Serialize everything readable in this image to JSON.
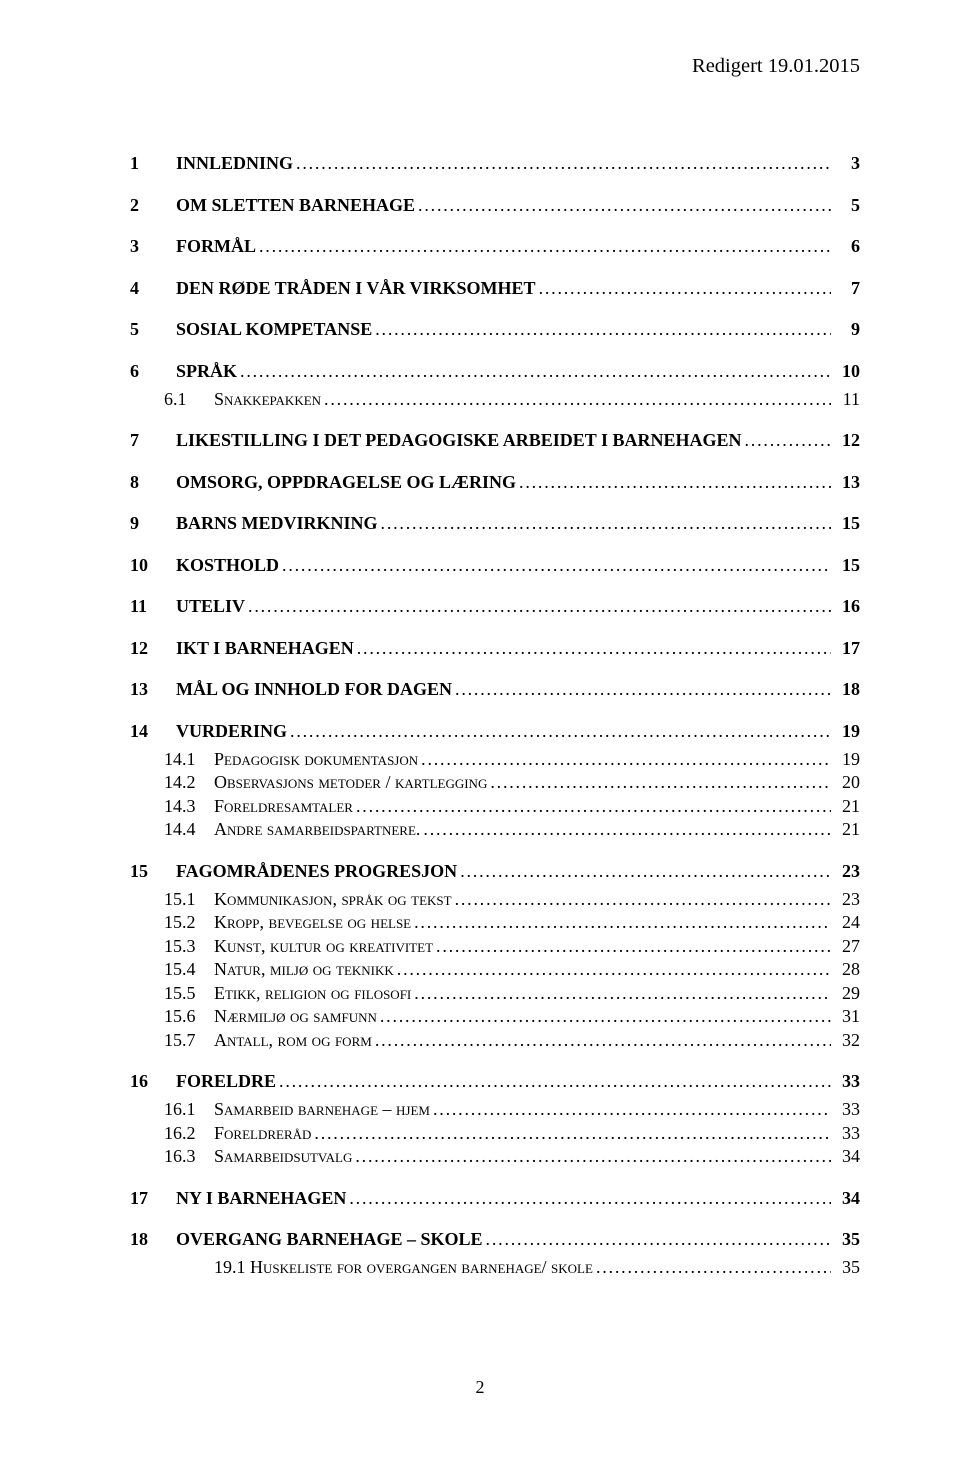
{
  "header_date": "Redigert 19.01.2015",
  "page_number": "2",
  "toc": [
    {
      "level": 1,
      "num": "1",
      "title": "INNLEDNING",
      "page": "3"
    },
    {
      "level": 1,
      "num": "2",
      "title": "OM SLETTEN BARNEHAGE",
      "page": "5"
    },
    {
      "level": 1,
      "num": "3",
      "title": "FORMÅL",
      "page": "6"
    },
    {
      "level": 1,
      "num": "4",
      "title": "DEN RØDE TRÅDEN I VÅR VIRKSOMHET",
      "page": "7"
    },
    {
      "level": 1,
      "num": "5",
      "title": "SOSIAL KOMPETANSE",
      "page": "9"
    },
    {
      "level": 1,
      "num": "6",
      "title": "SPRÅK",
      "page": "10"
    },
    {
      "level": 2,
      "num": "6.1",
      "title": "Snakkepakken",
      "page": "11",
      "smallcaps": true
    },
    {
      "level": 1,
      "num": "7",
      "title": "LIKESTILLING I DET PEDAGOGISKE ARBEIDET I BARNEHAGEN",
      "page": "12"
    },
    {
      "level": 1,
      "num": "8",
      "title": "OMSORG, OPPDRAGELSE OG LÆRING",
      "page": "13"
    },
    {
      "level": 1,
      "num": "9",
      "title": "BARNS MEDVIRKNING",
      "page": "15"
    },
    {
      "level": 1,
      "num": "10",
      "title": "KOSTHOLD",
      "page": "15"
    },
    {
      "level": 1,
      "num": "11",
      "title": "UTELIV",
      "page": "16"
    },
    {
      "level": 1,
      "num": "12",
      "title": "IKT I BARNEHAGEN",
      "page": "17"
    },
    {
      "level": 1,
      "num": "13",
      "title": "MÅL OG INNHOLD FOR DAGEN",
      "page": "18"
    },
    {
      "level": 1,
      "num": "14",
      "title": "VURDERING",
      "page": "19"
    },
    {
      "level": 2,
      "num": "14.1",
      "title": "Pedagogisk dokumentasjon",
      "page": "19",
      "smallcaps": true
    },
    {
      "level": 2,
      "num": "14.2",
      "title": "Observasjons metoder / kartlegging",
      "page": "20",
      "smallcaps": true
    },
    {
      "level": 2,
      "num": "14.3",
      "title": "Foreldresamtaler",
      "page": "21",
      "smallcaps": true
    },
    {
      "level": 2,
      "num": "14.4",
      "title": "Andre samarbeidspartnere.",
      "page": "21",
      "smallcaps": true
    },
    {
      "level": 1,
      "num": "15",
      "title": "FAGOMRÅDENES PROGRESJON",
      "page": "23"
    },
    {
      "level": 2,
      "num": "15.1",
      "title": "Kommunikasjon, språk og tekst",
      "page": "23",
      "smallcaps": true
    },
    {
      "level": 2,
      "num": "15.2",
      "title": "Kropp, bevegelse og helse",
      "page": "24",
      "smallcaps": true
    },
    {
      "level": 2,
      "num": "15.3",
      "title": "Kunst, kultur og kreativitet",
      "page": "27",
      "smallcaps": true
    },
    {
      "level": 2,
      "num": "15.4",
      "title": "Natur, miljø og teknikk",
      "page": "28",
      "smallcaps": true
    },
    {
      "level": 2,
      "num": "15.5",
      "title": "Etikk, religion og filosofi",
      "page": "29",
      "smallcaps": true
    },
    {
      "level": 2,
      "num": "15.6",
      "title": "Nærmiljø og samfunn",
      "page": "31",
      "smallcaps": true
    },
    {
      "level": 2,
      "num": "15.7",
      "title": "Antall, rom og form",
      "page": "32",
      "smallcaps": true
    },
    {
      "level": 1,
      "num": "16",
      "title": "FORELDRE",
      "page": "33"
    },
    {
      "level": 2,
      "num": "16.1",
      "title": "Samarbeid barnehage – hjem",
      "page": "33",
      "smallcaps": true
    },
    {
      "level": 2,
      "num": "16.2",
      "title": "Foreldreråd",
      "page": "33",
      "smallcaps": true
    },
    {
      "level": 2,
      "num": "16.3",
      "title": "Samarbeidsutvalg",
      "page": "34",
      "smallcaps": true
    },
    {
      "level": 1,
      "num": "17",
      "title": "NY I BARNEHAGEN",
      "page": "34"
    },
    {
      "level": 1,
      "num": "18",
      "title": "OVERGANG BARNEHAGE – SKOLE",
      "page": "35"
    },
    {
      "level": 2,
      "num": "",
      "title": "19.1 Huskeliste for overgangen barnehage/ skole",
      "page": "35",
      "smallcaps": true
    }
  ]
}
